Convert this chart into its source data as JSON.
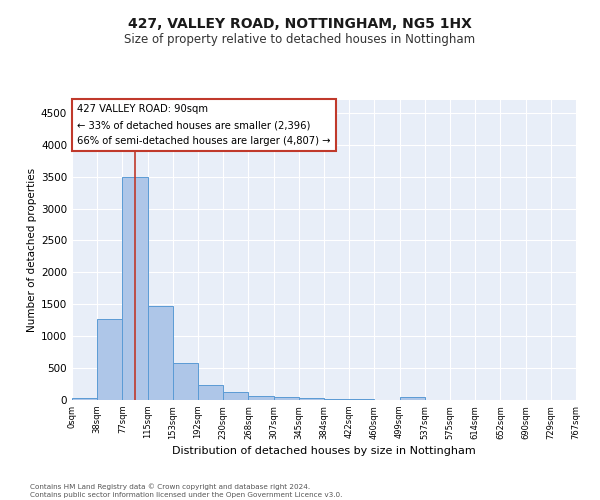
{
  "title1": "427, VALLEY ROAD, NOTTINGHAM, NG5 1HX",
  "title2": "Size of property relative to detached houses in Nottingham",
  "xlabel": "Distribution of detached houses by size in Nottingham",
  "ylabel": "Number of detached properties",
  "bar_values": [
    30,
    1270,
    3500,
    1480,
    580,
    240,
    120,
    70,
    40,
    25,
    15,
    10,
    5,
    40,
    5,
    3,
    2,
    2,
    1,
    1
  ],
  "bar_labels": [
    "0sqm",
    "38sqm",
    "77sqm",
    "115sqm",
    "153sqm",
    "192sqm",
    "230sqm",
    "268sqm",
    "307sqm",
    "345sqm",
    "384sqm",
    "422sqm",
    "460sqm",
    "499sqm",
    "537sqm",
    "575sqm",
    "614sqm",
    "652sqm",
    "690sqm",
    "729sqm",
    "767sqm"
  ],
  "bar_color": "#aec6e8",
  "bar_edge_color": "#5b9bd5",
  "vline_x": 2.0,
  "vline_color": "#c0392b",
  "annotation_text": "427 VALLEY ROAD: 90sqm\n← 33% of detached houses are smaller (2,396)\n66% of semi-detached houses are larger (4,807) →",
  "annotation_box_color": "#ffffff",
  "annotation_box_edge": "#c0392b",
  "ylim": [
    0,
    4700
  ],
  "yticks": [
    0,
    500,
    1000,
    1500,
    2000,
    2500,
    3000,
    3500,
    4000,
    4500
  ],
  "footer": "Contains HM Land Registry data © Crown copyright and database right 2024.\nContains public sector information licensed under the Open Government Licence v3.0.",
  "bg_color": "#e8eef8",
  "title1_fontsize": 10,
  "title2_fontsize": 8.5
}
